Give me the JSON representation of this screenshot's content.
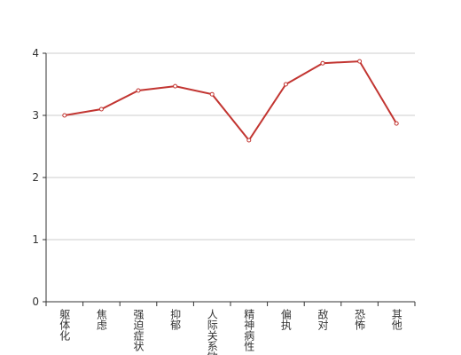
{
  "chart_data": {
    "type": "line",
    "categories": [
      "躯体化",
      "焦虑",
      "强迫症状",
      "抑郁",
      "人际关系敏感",
      "精神病性",
      "偏执",
      "敌对",
      "恐怖",
      "其他"
    ],
    "values": [
      3.0,
      3.1,
      3.4,
      3.47,
      3.34,
      2.6,
      3.5,
      3.84,
      3.87,
      2.87
    ],
    "color": "#c23531",
    "ylim": [
      0,
      4
    ],
    "yticks": [
      0,
      1,
      2,
      3,
      4
    ],
    "grid": true
  }
}
